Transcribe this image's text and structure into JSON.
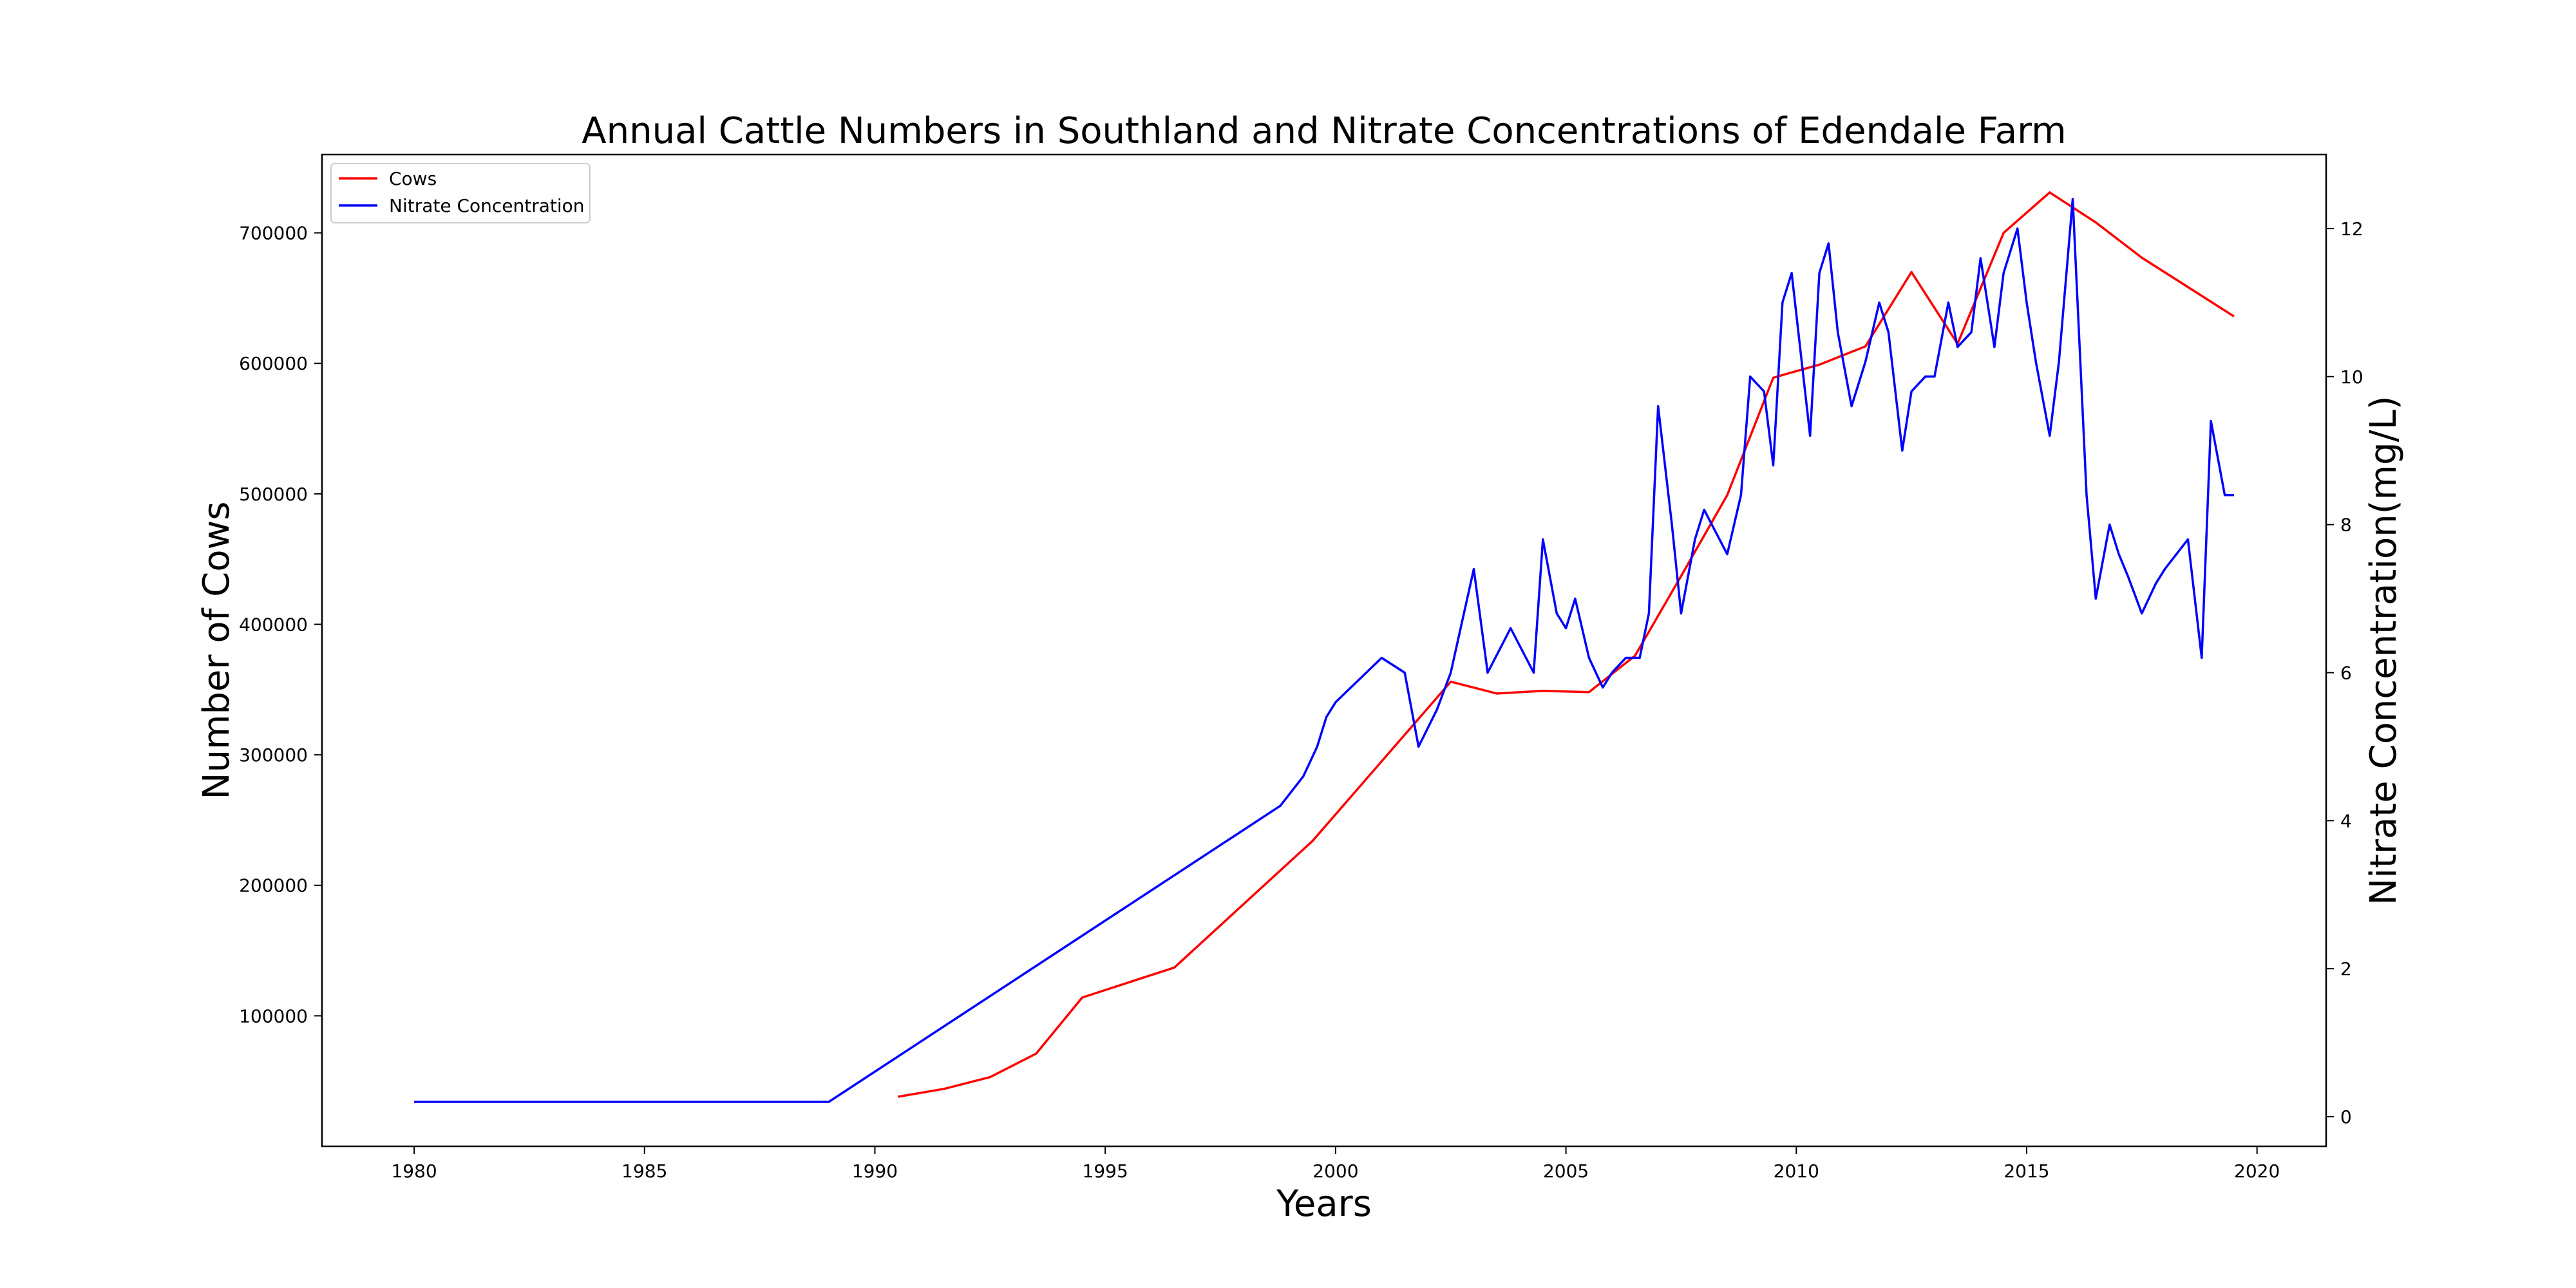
{
  "chart_data": {
    "type": "line",
    "title": "Annual Cattle Numbers in Southland and Nitrate Concentrations of Edendale Farm",
    "xlabel": "Years",
    "ylabel_left": "Number of Cows",
    "ylabel_right": "Nitrate Concentration(mg/L)",
    "xlim": [
      1978,
      2021.5
    ],
    "ylim_left": [
      0,
      760000
    ],
    "ylim_right": [
      -0.4,
      13
    ],
    "x_ticks": [
      1980,
      1985,
      1990,
      1995,
      2000,
      2005,
      2010,
      2015,
      2020
    ],
    "y_left_ticks": [
      100000,
      200000,
      300000,
      400000,
      500000,
      600000,
      700000
    ],
    "y_right_ticks": [
      0,
      2,
      4,
      6,
      8,
      10,
      12
    ],
    "grid": false,
    "legend_position": "top-left",
    "series": [
      {
        "name": "Cows",
        "axis": "left",
        "color": "#ff0000",
        "x": [
          1990.5,
          1991.5,
          1992.5,
          1993.5,
          1994.5,
          1996.5,
          1999.5,
          2002.5,
          2003.5,
          2004.5,
          2005.5,
          2006.5,
          2007.5,
          2008.5,
          2009.5,
          2010.5,
          2011.5,
          2012.5,
          2013.5,
          2014.5,
          2015.5,
          2016.5,
          2017.5,
          2019.5
        ],
        "values": [
          38000,
          44000,
          53000,
          71000,
          114000,
          137000,
          234000,
          356000,
          347000,
          349000,
          348000,
          376000,
          437000,
          499000,
          589000,
          599000,
          613000,
          670000,
          615000,
          700000,
          731000,
          708000,
          681000,
          636000
        ]
      },
      {
        "name": "Nitrate Concentration",
        "axis": "right",
        "color": "#0000ff",
        "x": [
          1980,
          1989,
          1998.8,
          1999.3,
          1999.6,
          1999.8,
          2000,
          2001,
          2001.5,
          2001.8,
          2002.2,
          2002.5,
          2003,
          2003.3,
          2003.8,
          2004.3,
          2004.5,
          2004.8,
          2005,
          2005.2,
          2005.5,
          2005.8,
          2006,
          2006.3,
          2006.6,
          2006.8,
          2007,
          2007.3,
          2007.5,
          2007.8,
          2008,
          2008.5,
          2008.8,
          2009,
          2009.3,
          2009.5,
          2009.7,
          2009.9,
          2010.3,
          2010.5,
          2010.7,
          2010.9,
          2011.2,
          2011.5,
          2011.8,
          2012,
          2012.3,
          2012.5,
          2012.8,
          2013,
          2013.3,
          2013.5,
          2013.8,
          2014,
          2014.3,
          2014.5,
          2014.8,
          2015,
          2015.2,
          2015.5,
          2015.7,
          2016,
          2016.3,
          2016.5,
          2016.8,
          2017,
          2017.2,
          2017.5,
          2017.8,
          2018,
          2018.5,
          2018.8,
          2019,
          2019.3,
          2019.5
        ],
        "values": [
          0.2,
          0.2,
          4.2,
          4.6,
          5.0,
          5.4,
          5.6,
          6.2,
          6.0,
          5.0,
          5.5,
          6.0,
          7.4,
          6.0,
          6.6,
          6.0,
          7.8,
          6.8,
          6.6,
          7.0,
          6.2,
          5.8,
          6.0,
          6.2,
          6.2,
          6.8,
          9.6,
          8.0,
          6.8,
          7.8,
          8.2,
          7.6,
          8.4,
          10.0,
          9.8,
          8.8,
          11.0,
          11.4,
          9.2,
          11.4,
          11.8,
          10.6,
          9.6,
          10.2,
          11.0,
          10.6,
          9.0,
          9.8,
          10.0,
          10.0,
          11.0,
          10.4,
          10.6,
          11.6,
          10.4,
          11.4,
          12.0,
          11.0,
          10.2,
          9.2,
          10.2,
          12.4,
          8.4,
          7.0,
          8.0,
          7.6,
          7.3,
          6.8,
          7.2,
          7.4,
          7.8,
          6.2,
          9.4,
          8.4,
          8.4
        ]
      }
    ]
  }
}
